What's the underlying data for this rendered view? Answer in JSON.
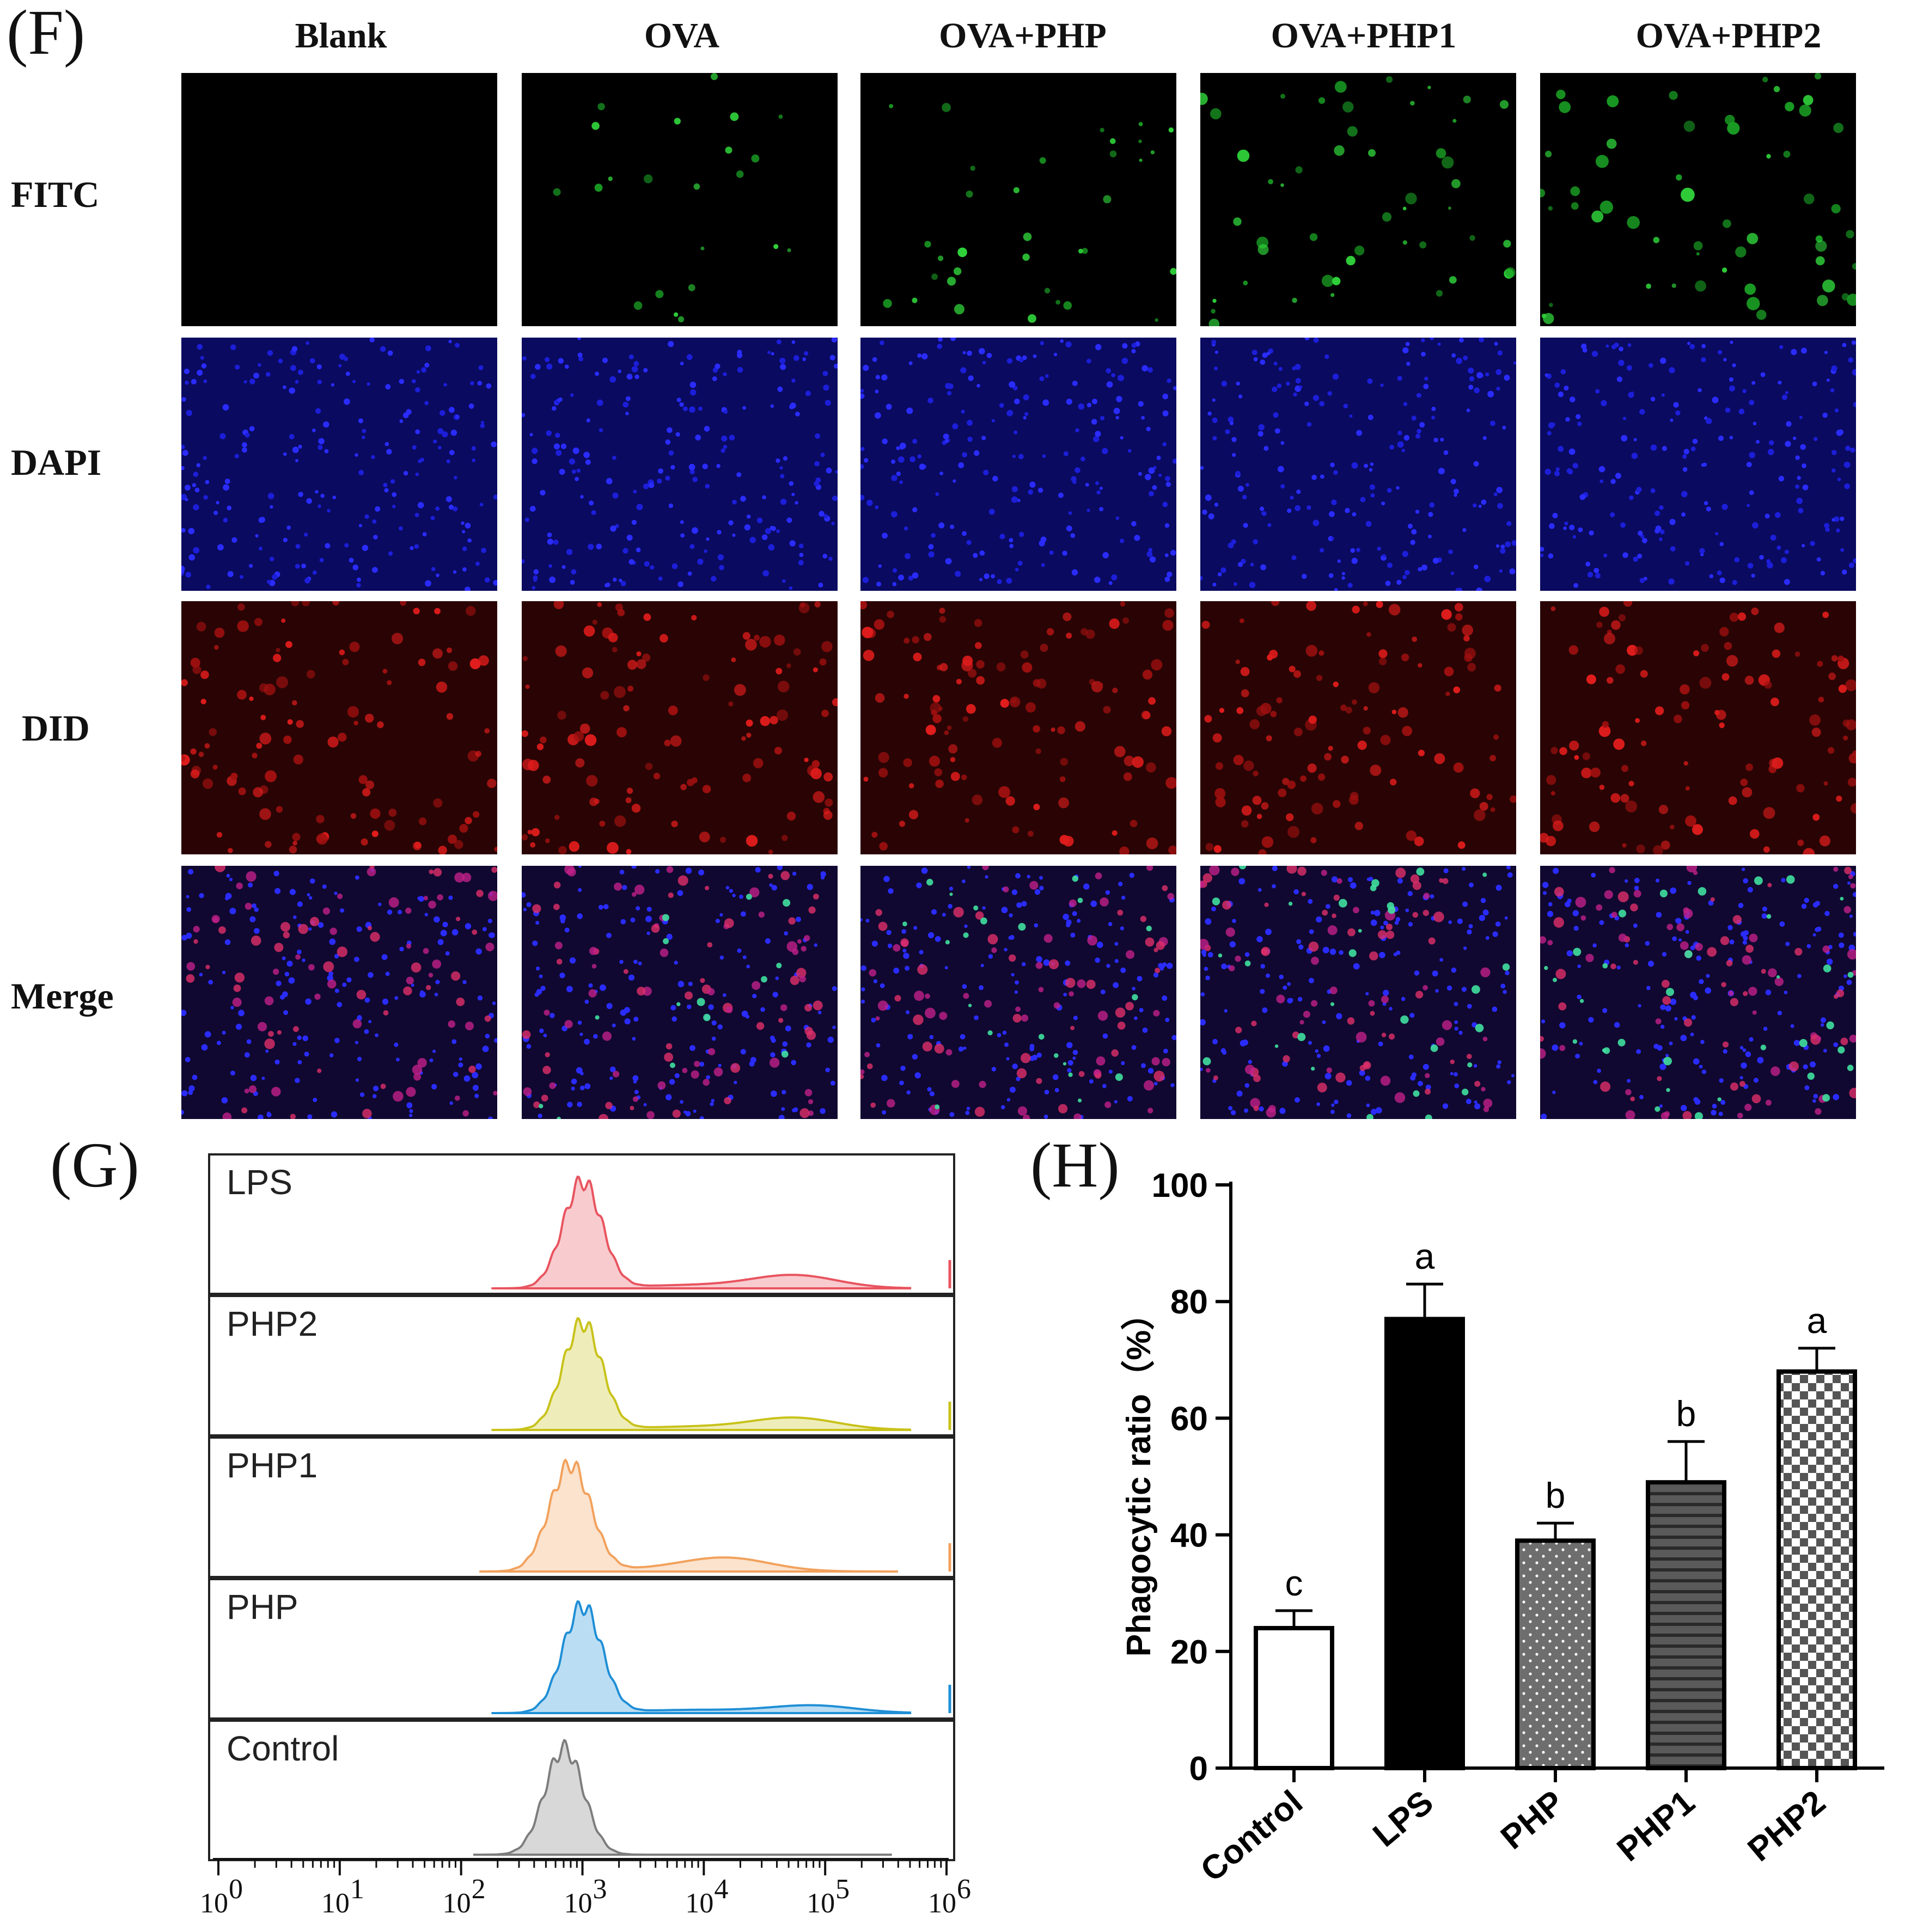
{
  "panels": {
    "F": "(F)",
    "G": "(G)",
    "H": "(H)"
  },
  "micrograph_grid": {
    "columns": [
      "Blank",
      "OVA",
      "OVA+PHP",
      "OVA+PHP1",
      "OVA+PHP2"
    ],
    "rows": [
      "FITC",
      "DAPI",
      "DID",
      "Merge"
    ]
  },
  "histograms": {
    "samples": [
      "LPS",
      "PHP2",
      "PHP1",
      "PHP",
      "Control"
    ],
    "colors": [
      "#e8545f",
      "#c8c21a",
      "#f2a15c",
      "#1f8fd6",
      "#7d7d7d"
    ],
    "x_ticks": [
      "10",
      "10",
      "10",
      "10",
      "10",
      "10",
      "10"
    ],
    "x_exponents": [
      "0",
      "1",
      "2",
      "3",
      "4",
      "5",
      "6"
    ]
  },
  "chart_data": {
    "type": "bar",
    "title": "",
    "xlabel": "",
    "ylabel": "Phagocytic ratio（%）",
    "ylim": [
      0,
      100
    ],
    "yticks": [
      "0",
      "20",
      "40",
      "60",
      "80",
      "100"
    ],
    "categories": [
      "Control",
      "LPS",
      "PHP",
      "PHP1",
      "PHP2"
    ],
    "values": [
      24,
      77,
      39,
      49,
      68
    ],
    "errors": [
      3,
      6,
      3,
      7,
      4
    ],
    "significance_letters": [
      "c",
      "a",
      "b",
      "b",
      "a"
    ],
    "bar_fills": [
      "white",
      "black",
      "dotted",
      "horizontal-lines",
      "checkered"
    ]
  }
}
